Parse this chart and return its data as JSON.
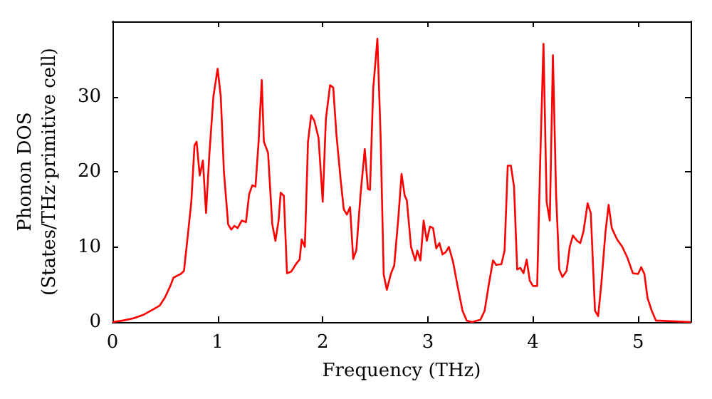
{
  "chart_data": {
    "type": "line",
    "xlabel": "Frequency (THz)",
    "ylabel": "Phonon DOS\n(States/THz·primitive cell)",
    "xlim": [
      0,
      5.5
    ],
    "xticks": [
      0,
      1,
      2,
      3,
      4,
      5
    ],
    "ylim": [
      0,
      40
    ],
    "yticks": [
      0,
      10,
      20,
      30
    ],
    "grid": false,
    "marker": "none",
    "line_style": "solid",
    "series": [
      {
        "color": "#ff0000",
        "x": [
          0,
          0.1,
          0.2,
          0.3,
          0.4,
          0.45,
          0.5,
          0.55,
          0.58,
          0.62,
          0.65,
          0.68,
          0.72,
          0.75,
          0.78,
          0.8,
          0.83,
          0.86,
          0.89,
          0.92,
          0.96,
          1.0,
          1.03,
          1.06,
          1.1,
          1.13,
          1.16,
          1.19,
          1.23,
          1.27,
          1.3,
          1.33,
          1.36,
          1.39,
          1.42,
          1.44,
          1.48,
          1.52,
          1.55,
          1.58,
          1.6,
          1.63,
          1.66,
          1.7,
          1.75,
          1.78,
          1.8,
          1.83,
          1.86,
          1.89,
          1.92,
          1.96,
          2.0,
          2.03,
          2.07,
          2.1,
          2.13,
          2.17,
          2.2,
          2.23,
          2.26,
          2.29,
          2.32,
          2.36,
          2.4,
          2.43,
          2.45,
          2.48,
          2.52,
          2.55,
          2.58,
          2.61,
          2.65,
          2.68,
          2.72,
          2.75,
          2.78,
          2.8,
          2.84,
          2.88,
          2.9,
          2.93,
          2.96,
          2.99,
          3.02,
          3.05,
          3.08,
          3.11,
          3.14,
          3.17,
          3.2,
          3.24,
          3.28,
          3.33,
          3.37,
          3.42,
          3.5,
          3.54,
          3.58,
          3.62,
          3.65,
          3.7,
          3.73,
          3.76,
          3.79,
          3.82,
          3.85,
          3.88,
          3.91,
          3.94,
          3.97,
          4.0,
          4.04,
          4.07,
          4.1,
          4.13,
          4.16,
          4.19,
          4.22,
          4.25,
          4.28,
          4.32,
          4.35,
          4.38,
          4.42,
          4.45,
          4.48,
          4.52,
          4.55,
          4.59,
          4.62,
          4.65,
          4.69,
          4.72,
          4.75,
          4.8,
          4.85,
          4.9,
          4.95,
          5.0,
          5.03,
          5.06,
          5.09,
          5.13,
          5.17,
          5.5
        ],
        "values": [
          0,
          0.2,
          0.5,
          1,
          1.8,
          2.2,
          3.3,
          4.8,
          5.9,
          6.2,
          6.4,
          6.8,
          12,
          16,
          23.5,
          24,
          19.5,
          21.5,
          14.5,
          22,
          30,
          33.7,
          30,
          20,
          13,
          12.3,
          12.8,
          12.5,
          13.5,
          13.3,
          17,
          18.2,
          18,
          24,
          32.2,
          24,
          22.5,
          13,
          10.8,
          13.5,
          17.2,
          16.8,
          6.5,
          6.7,
          7.8,
          8.3,
          11,
          10,
          24,
          27.5,
          26.8,
          24.5,
          16,
          27,
          31.5,
          31.2,
          25,
          19,
          15,
          14.3,
          15.3,
          8.4,
          9.6,
          17,
          23,
          17.7,
          17.6,
          31,
          37.7,
          25,
          6.3,
          4.3,
          6.5,
          7.5,
          14,
          19.7,
          16.8,
          16.2,
          10,
          8.2,
          9.5,
          8.2,
          13.5,
          10.8,
          12.7,
          12.5,
          9.8,
          10.5,
          9,
          9.3,
          10,
          8,
          5,
          1.5,
          0.2,
          0,
          0.3,
          1.5,
          5,
          8.2,
          7.6,
          7.7,
          9.5,
          20.8,
          20.8,
          18,
          7,
          7.2,
          6.5,
          8.3,
          5.5,
          4.8,
          4.8,
          22,
          37,
          16,
          13.5,
          35.5,
          17,
          7,
          6,
          6.8,
          10,
          11.5,
          10.8,
          10.5,
          12,
          15.8,
          14.5,
          1.5,
          0.8,
          5,
          12,
          15.6,
          12.5,
          11,
          10,
          8.5,
          6.5,
          6.4,
          7.3,
          6.4,
          3.2,
          1.5,
          0.2,
          0
        ]
      }
    ]
  }
}
